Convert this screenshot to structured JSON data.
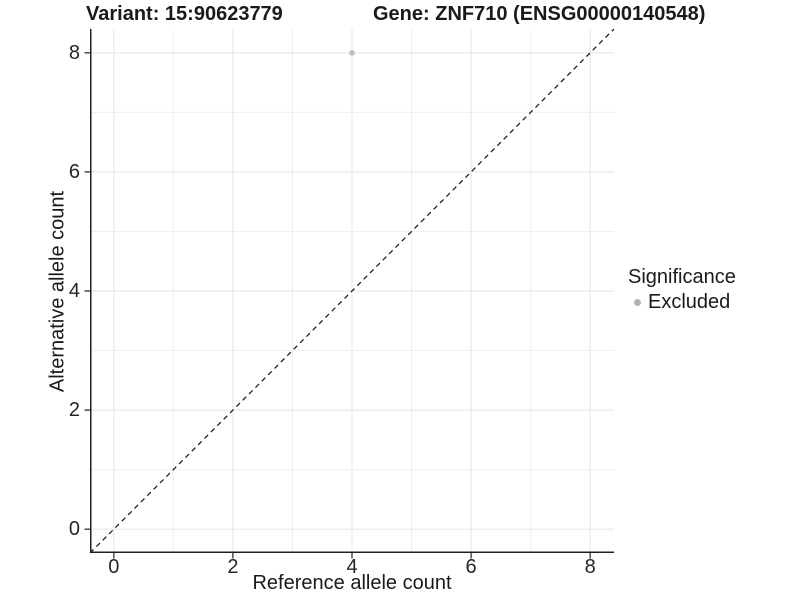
{
  "figure": {
    "title_left": "Variant: 15:90623779",
    "title_right": "Gene: ZNF710 (ENSG00000140548)"
  },
  "chart_data": {
    "type": "scatter",
    "title": "Variant: 15:90623779   Gene: ZNF710 (ENSG00000140548)",
    "xlabel": "Reference allele count",
    "ylabel": "Alternative allele count",
    "xlim": [
      -0.4,
      8.4
    ],
    "ylim": [
      -0.4,
      8.4
    ],
    "x_ticks": [
      0,
      2,
      4,
      6,
      8
    ],
    "y_ticks": [
      0,
      2,
      4,
      6,
      8
    ],
    "x_minor_breaks": [
      1,
      3,
      5,
      7
    ],
    "y_minor_breaks": [
      1,
      3,
      5,
      7
    ],
    "x_tick_labels": [
      "0",
      "2",
      "4",
      "6",
      "8"
    ],
    "y_tick_labels": [
      "0",
      "2",
      "4",
      "6",
      "8"
    ],
    "grid": true,
    "series": [
      {
        "name": "Excluded",
        "color": "#bdbdbd",
        "points": [
          {
            "x": 4,
            "y": 8
          }
        ]
      }
    ],
    "reference_line": {
      "slope": 1,
      "intercept": 0,
      "style": "dashed",
      "color": "#111111"
    },
    "legend": {
      "title": "Significance",
      "position": "right",
      "entries": [
        {
          "label": "Excluded",
          "color": "#b3b3b3"
        }
      ]
    },
    "colors": {
      "grid_major": "#e4e4e4",
      "grid_minor": "#efefef",
      "axis_line": "#1f1f1f",
      "tick_mark": "#333333",
      "background": "#ffffff"
    }
  }
}
